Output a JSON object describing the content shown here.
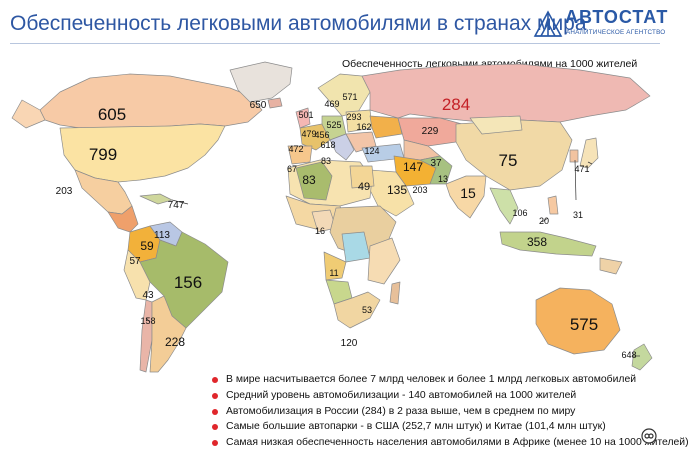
{
  "header": {
    "title": "Обеспеченность легковыми автомобилями в странах мира",
    "logo_name": "АВТОСТАТ",
    "logo_tagline": "АНАЛИТИЧЕСКОЕ АГЕНТСТВО"
  },
  "map": {
    "subtitle": "Обеспеченность легковыми автомобилями на 1000 жителей",
    "units": "легковых автомобилей на 1000 жителей",
    "values": {
      "canada": "605",
      "usa": "799",
      "mexico": "203",
      "cuba": "747",
      "greenland_iceland": "650",
      "central_america": "57",
      "colombia": "59",
      "venezuela": "113",
      "brazil": "156",
      "peru": "43",
      "chile": "158",
      "argentina": "228",
      "russia": "284",
      "kazakhstan": "229",
      "china": "75",
      "japan": "471",
      "south_korea": "31",
      "india": "15",
      "iran": "147",
      "pakistan_afghanistan": "13",
      "turkmenistan": "37",
      "saudi_arabia": "135",
      "oman_uae": "203",
      "egypt": "49",
      "algeria": "83",
      "morocco": "67",
      "portugal": "472",
      "spain": "479",
      "france": "501",
      "germany": "525",
      "sweden": "469",
      "finland": "571",
      "poland": "293",
      "ukraine": "162",
      "italy": "618",
      "balkans": "83",
      "turkey": "124",
      "uk": "456",
      "nigeria": "16",
      "angola": "11",
      "namibia": "53",
      "south_africa": "120",
      "thailand": "106",
      "philippines": "20",
      "indonesia": "358",
      "australia": "575",
      "new_zealand": "648"
    }
  },
  "notes": [
    "В мире насчитывается более 7 млрд человек и более 1 млрд легковых автомобилей",
    "Средний уровень автомобилизации - 140 автомобилей на 1000 жителей",
    "Автомобилизация в России (284) в 2 раза выше, чем в среднем по миру",
    "Самые большие автопарки - в США (252,7 млн штук) и Китае (101,4 млн штук)",
    "Самая низкая обеспеченность населения автомобилями в Африке (менее 10 на 1000 жителей)"
  ],
  "colors": {
    "title": "#2e57a3",
    "bullet": "#e0262b",
    "ocean": "#ffffff"
  }
}
